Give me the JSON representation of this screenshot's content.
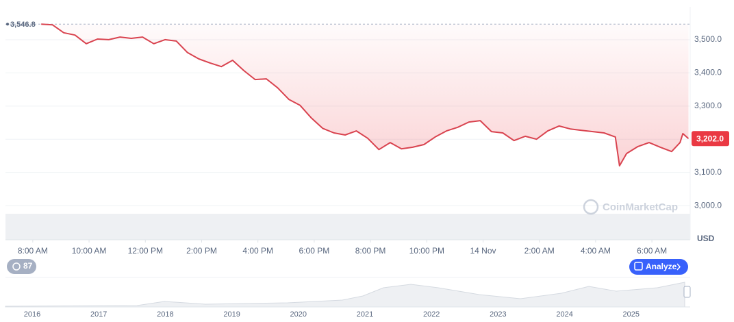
{
  "chart_data": {
    "type": "line",
    "color": "#d9434f",
    "x": [
      8.3,
      8.7,
      9.1,
      9.5,
      9.9,
      10.3,
      10.7,
      11.1,
      11.5,
      11.9,
      12.3,
      12.7,
      13.1,
      13.5,
      13.9,
      14.3,
      14.7,
      15.1,
      15.5,
      15.9,
      16.3,
      16.7,
      17.1,
      17.5,
      17.9,
      18.3,
      18.7,
      19.1,
      19.5,
      19.9,
      20.3,
      20.7,
      21.1,
      21.5,
      21.9,
      22.3,
      22.7,
      23.1,
      23.5,
      23.9,
      24.3,
      24.7,
      25.1,
      25.5,
      25.9,
      26.3,
      26.7,
      27.1,
      27.5,
      27.9,
      28.3,
      28.7,
      28.85,
      29.1,
      29.5,
      29.9,
      30.3,
      30.7,
      31.0,
      31.1,
      31.3
    ],
    "values": [
      3546.8,
      3545,
      3521,
      3514,
      3488,
      3502,
      3500,
      3508,
      3504,
      3508,
      3488,
      3500,
      3496,
      3461,
      3442,
      3430,
      3419,
      3438,
      3407,
      3380,
      3382,
      3355,
      3320,
      3302,
      3264,
      3233,
      3219,
      3213,
      3225,
      3203,
      3169,
      3190,
      3171,
      3176,
      3184,
      3207,
      3225,
      3236,
      3252,
      3256,
      3223,
      3219,
      3196,
      3209,
      3200,
      3225,
      3240,
      3231,
      3227,
      3223,
      3219,
      3207,
      3120,
      3157,
      3178,
      3190,
      3176,
      3163,
      3190,
      3217,
      3202.0
    ],
    "xlim": [
      7.03,
      31.36
    ],
    "xticks": [
      {
        "value": 8,
        "label": "8:00 AM"
      },
      {
        "value": 10,
        "label": "10:00 AM"
      },
      {
        "value": 12,
        "label": "12:00 PM"
      },
      {
        "value": 14,
        "label": "2:00 PM"
      },
      {
        "value": 16,
        "label": "4:00 PM"
      },
      {
        "value": 18,
        "label": "6:00 PM"
      },
      {
        "value": 20,
        "label": "8:00 PM"
      },
      {
        "value": 22,
        "label": "10:00 PM"
      },
      {
        "value": 24,
        "label": "14 Nov"
      },
      {
        "value": 26,
        "label": "2:00 AM"
      },
      {
        "value": 28,
        "label": "4:00 AM"
      },
      {
        "value": 30,
        "label": "6:00 AM"
      }
    ],
    "ylim": [
      2897,
      3599
    ],
    "yticks": [
      {
        "value": 3000,
        "label": "3,000.0"
      },
      {
        "value": 3100,
        "label": "3,100.0"
      },
      {
        "value": 3200,
        "label": "3,200.0"
      },
      {
        "value": 3300,
        "label": "3,300.0"
      },
      {
        "value": 3400,
        "label": "3,400.0"
      },
      {
        "value": 3500,
        "label": "3,500.0"
      }
    ],
    "grid": true,
    "y_label": "USD",
    "open_label": {
      "value": 3546.8,
      "label": "3,546.8"
    },
    "last_label": {
      "value": 3202.0,
      "label": "3,202.0"
    },
    "watermark": "CoinMarketCap",
    "badge": "87",
    "button": "Analyze",
    "navigator_years": [
      "2016",
      "2017",
      "2018",
      "2019",
      "2020",
      "2021",
      "2022",
      "2023",
      "2024",
      "2025"
    ]
  }
}
